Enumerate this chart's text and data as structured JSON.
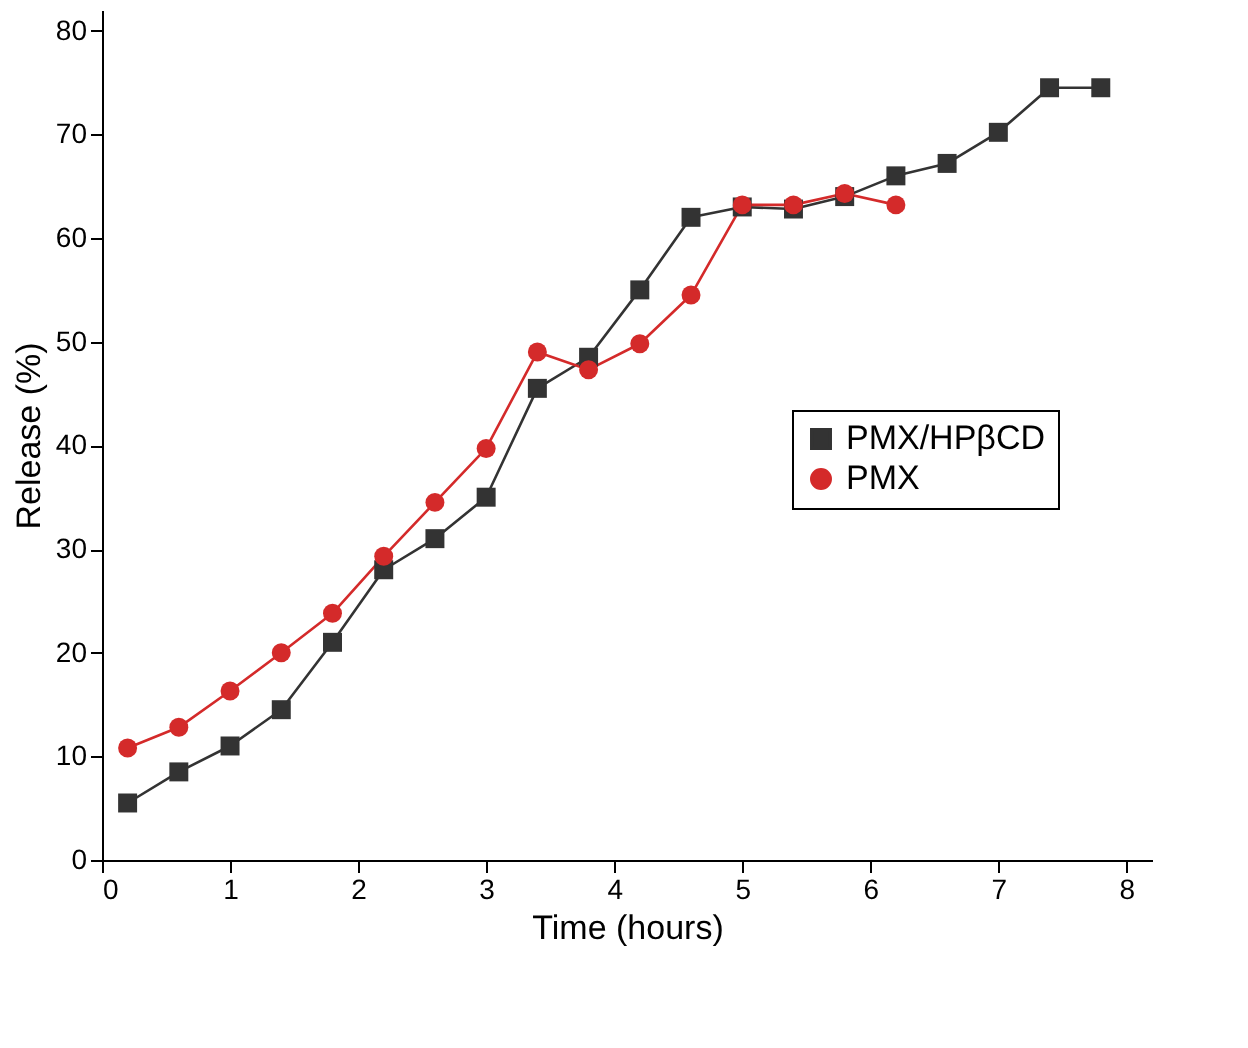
{
  "chart_data": {
    "type": "line",
    "xlabel": "Time (hours)",
    "ylabel": "Release (%)",
    "xlim": [
      0,
      8.2
    ],
    "xticks": [
      0,
      1,
      2,
      3,
      4,
      5,
      6,
      7,
      8
    ],
    "ylim": [
      0,
      82
    ],
    "yticks": [
      0,
      10,
      20,
      30,
      40,
      50,
      60,
      70,
      80
    ],
    "grid": false,
    "legend": "right",
    "series": [
      {
        "name": "PMX/HPβCD",
        "color": "#333333",
        "marker": "square",
        "x": [
          0.2,
          0.6,
          1.0,
          1.4,
          1.8,
          2.2,
          2.6,
          3.0,
          3.4,
          3.8,
          4.2,
          4.6,
          5.0,
          5.4,
          5.8,
          6.2,
          6.6,
          7.0,
          7.4,
          7.8
        ],
        "values": [
          5.5,
          8.5,
          11,
          14.5,
          21,
          28,
          31,
          35,
          45.5,
          48.5,
          55,
          62,
          63,
          62.8,
          64,
          66,
          67.2,
          70.2,
          74.5,
          74.5
        ]
      },
      {
        "name": "PMX",
        "color": "#d42a2a",
        "marker": "circle",
        "x": [
          0.2,
          0.6,
          1.0,
          1.4,
          1.8,
          2.2,
          2.6,
          3.0,
          3.4,
          3.8,
          4.2,
          4.6,
          5.0,
          5.4,
          5.8,
          6.2
        ],
        "values": [
          10.8,
          12.8,
          16.3,
          20,
          23.8,
          29.3,
          34.5,
          39.7,
          49,
          47.3,
          49.8,
          54.5,
          63.2,
          63.2,
          64.3,
          63.2
        ]
      }
    ]
  }
}
